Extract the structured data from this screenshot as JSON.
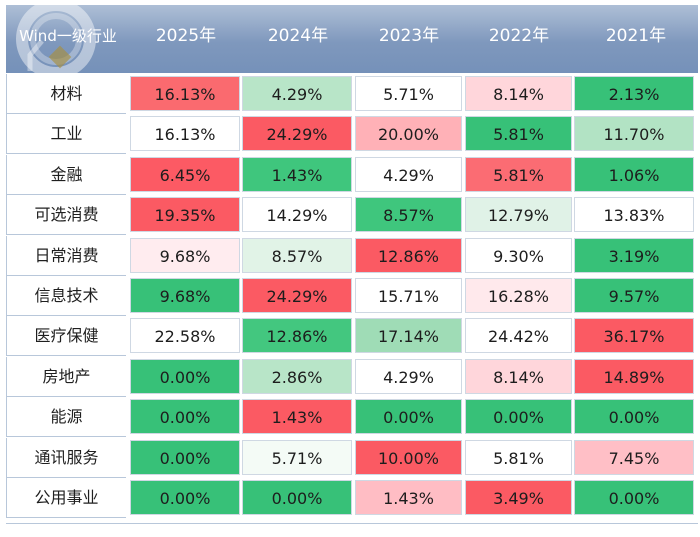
{
  "chart_data": {
    "type": "table",
    "header": {
      "row_label": "Wind一级行业",
      "years": [
        "2025年",
        "2024年",
        "2023年",
        "2022年",
        "2021年"
      ]
    },
    "rows": [
      {
        "label": "材料",
        "values": [
          "16.13%",
          "4.29%",
          "5.71%",
          "8.14%",
          "2.13%"
        ],
        "colors": [
          "#fa6a6f",
          "#b8e5c8",
          "#ffffff",
          "#ffd6db",
          "#37c178"
        ]
      },
      {
        "label": "工业",
        "values": [
          "16.13%",
          "24.29%",
          "20.00%",
          "5.81%",
          "11.70%"
        ],
        "colors": [
          "#ffffff",
          "#fb5a63",
          "#ffb1b7",
          "#37c178",
          "#b2e3c4"
        ]
      },
      {
        "label": "金融",
        "values": [
          "6.45%",
          "1.43%",
          "4.29%",
          "5.81%",
          "1.06%"
        ],
        "colors": [
          "#fc5a64",
          "#3fc67d",
          "#ffffff",
          "#fb6c73",
          "#37c178"
        ]
      },
      {
        "label": "可选消费",
        "values": [
          "19.35%",
          "14.29%",
          "8.57%",
          "12.79%",
          "13.83%"
        ],
        "colors": [
          "#fb5a63",
          "#ffffff",
          "#3fc67d",
          "#e0f2e7",
          "#ffffff"
        ]
      },
      {
        "label": "日常消费",
        "values": [
          "9.68%",
          "8.57%",
          "12.86%",
          "9.30%",
          "3.19%"
        ],
        "colors": [
          "#ffecef",
          "#e1f3e7",
          "#fb5a63",
          "#ffffff",
          "#37c178"
        ]
      },
      {
        "label": "信息技术",
        "values": [
          "9.68%",
          "24.29%",
          "15.71%",
          "16.28%",
          "9.57%"
        ],
        "colors": [
          "#37c178",
          "#fb5a63",
          "#ffffff",
          "#ffe9ec",
          "#37c178"
        ]
      },
      {
        "label": "医疗保健",
        "values": [
          "22.58%",
          "12.86%",
          "17.14%",
          "24.42%",
          "36.17%"
        ],
        "colors": [
          "#ffffff",
          "#43c77f",
          "#9fdcb6",
          "#ffffff",
          "#fb5a63"
        ]
      },
      {
        "label": "房地产",
        "values": [
          "0.00%",
          "2.86%",
          "4.29%",
          "8.14%",
          "14.89%"
        ],
        "colors": [
          "#37c178",
          "#b8e5c8",
          "#ffffff",
          "#ffd6db",
          "#fb5a63"
        ]
      },
      {
        "label": "能源",
        "values": [
          "0.00%",
          "1.43%",
          "0.00%",
          "0.00%",
          "0.00%"
        ],
        "colors": [
          "#37c178",
          "#fb5a63",
          "#37c178",
          "#37c178",
          "#37c178"
        ]
      },
      {
        "label": "通讯服务",
        "values": [
          "0.00%",
          "5.71%",
          "10.00%",
          "5.81%",
          "7.45%"
        ],
        "colors": [
          "#37c178",
          "#f4fbf6",
          "#fb5a63",
          "#ffffff",
          "#ffbfc6"
        ]
      },
      {
        "label": "公用事业",
        "values": [
          "0.00%",
          "0.00%",
          "1.43%",
          "3.49%",
          "0.00%"
        ],
        "colors": [
          "#37c178",
          "#37c178",
          "#ffbdc4",
          "#fb5a63",
          "#37c178"
        ]
      }
    ]
  }
}
